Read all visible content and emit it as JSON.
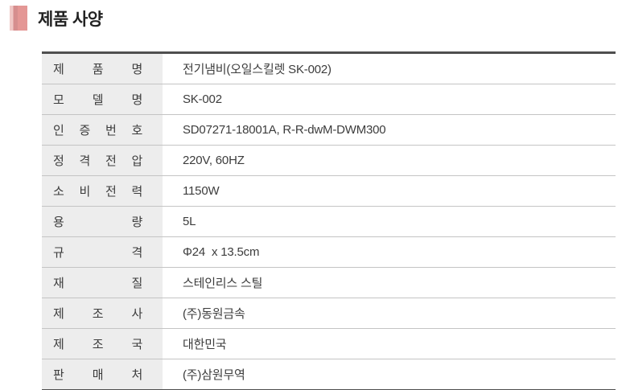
{
  "header": {
    "title": "제품 사양",
    "accent_color": "#e49795",
    "accent_color_dark": "#d68e8e",
    "accent_color_light": "#f0c7c5"
  },
  "spec_table": {
    "label_bg_color": "#ededed",
    "border_color_thick": "#4f4f4f",
    "border_color_thin": "#c4c4c4",
    "rows": [
      {
        "label": "제품명",
        "value": "전기냄비(오일스킬렛 SK-002)"
      },
      {
        "label": "모델명",
        "value": "SK-002"
      },
      {
        "label": "인증번호",
        "value": "SD07271-18001A, R-R-dwM-DWM300"
      },
      {
        "label": "정격전압",
        "value": "220V, 60HZ"
      },
      {
        "label": "소비전력",
        "value": "1150W"
      },
      {
        "label": "용량",
        "value": "5L"
      },
      {
        "label": "규격",
        "value": "Φ24  x 13.5cm"
      },
      {
        "label": "재질",
        "value": "스테인리스 스틸"
      },
      {
        "label": "제조사",
        "value": "(주)동원금속"
      },
      {
        "label": "제조국",
        "value": "대한민국"
      },
      {
        "label": "판매처",
        "value": "(주)삼원무역"
      }
    ]
  }
}
